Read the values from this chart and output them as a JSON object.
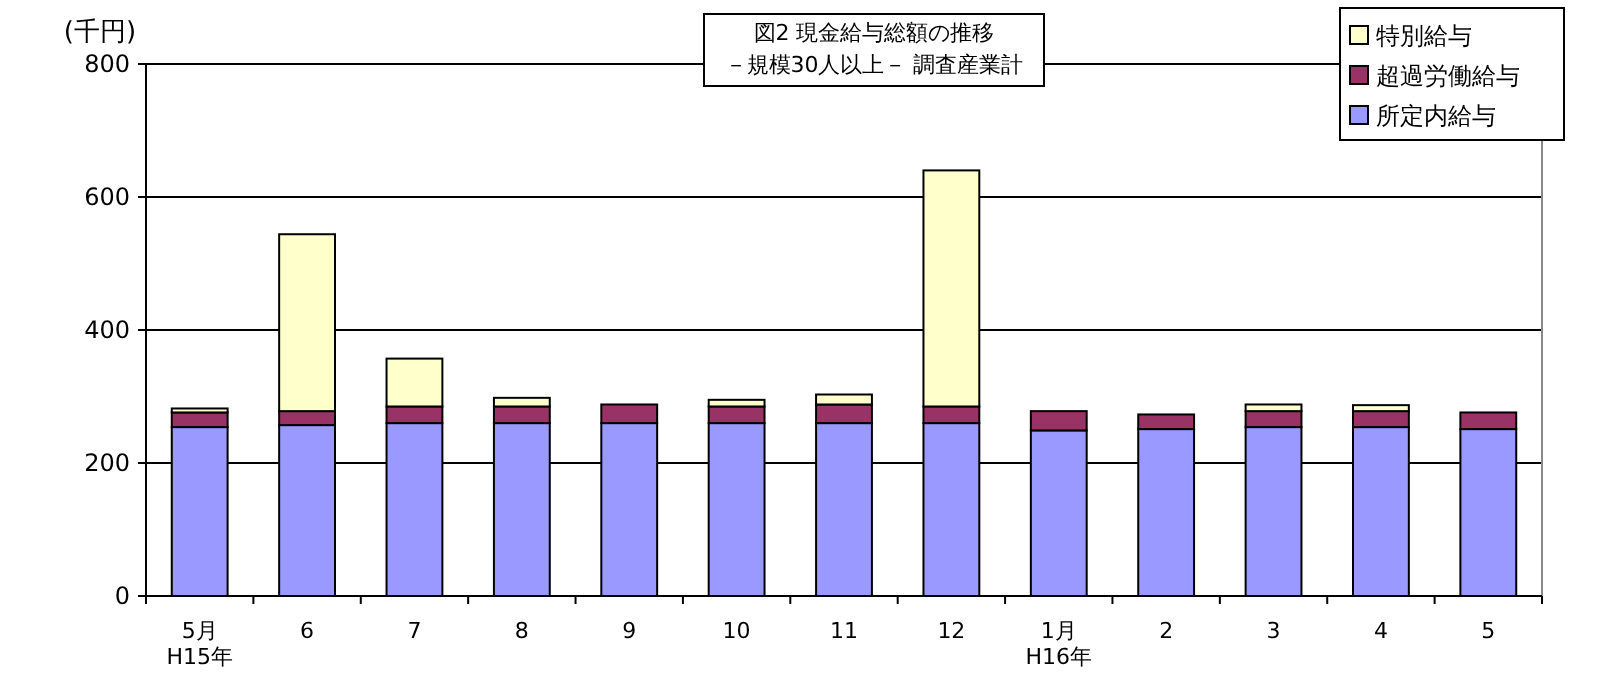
{
  "chart_data": {
    "type": "bar",
    "stacked": true,
    "title": "図2 現金給与総額の推移",
    "subtitle": "－規模30人以上－ 調査産業計",
    "ylabel": "(千円)",
    "categories": [
      "5月\nH15年",
      "6",
      "7",
      "8",
      "9",
      "10",
      "11",
      "12",
      "1月\nH16年",
      "2",
      "3",
      "4",
      "5"
    ],
    "series": [
      {
        "name": "所定内給与",
        "color": "#9999ff",
        "values": [
          254,
          257,
          260,
          260,
          260,
          260,
          260,
          260,
          249,
          251,
          254,
          254,
          251
        ]
      },
      {
        "name": "超過労働給与",
        "color": "#993366",
        "values": [
          22,
          21,
          25,
          25,
          28,
          25,
          28,
          25,
          29,
          22,
          24,
          24,
          25
        ]
      },
      {
        "name": "特別給与",
        "color": "#ffffcc",
        "values": [
          6,
          266,
          72,
          13,
          0,
          10,
          15,
          355,
          0,
          0,
          10,
          9,
          0
        ]
      }
    ],
    "ylim": [
      0,
      800
    ],
    "yticks": [
      0,
      200,
      400,
      600,
      800
    ],
    "grid": "y",
    "legend": "top right"
  }
}
